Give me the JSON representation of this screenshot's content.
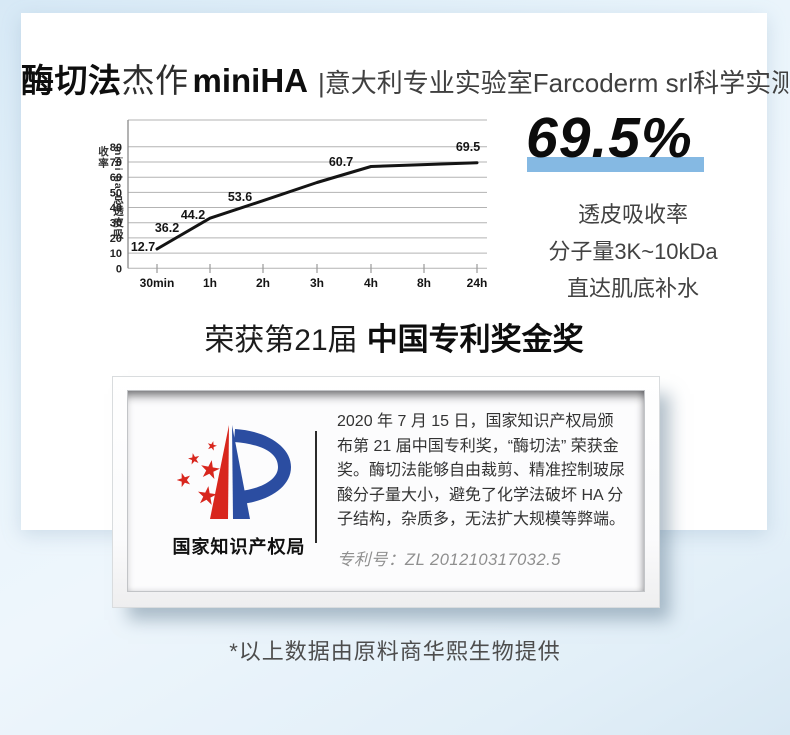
{
  "header": {
    "title_bold_1": "酶切法",
    "title_regular": "杰作",
    "title_bold_2": "miniHA",
    "subtitle": "|意大利专业实验室Farcoderm srl科学实测"
  },
  "stat": {
    "value": "69.5%",
    "desc_lines": [
      "透皮吸收率",
      "分子量3K~10kDa",
      "直达肌底补水"
    ],
    "highlight_color": "#85b9e3"
  },
  "award": {
    "prefix": "荣获第21届",
    "title": "中国专利奖金奖"
  },
  "certificate": {
    "agency": "国家知识产权局",
    "body": "2020 年 7 月 15 日，国家知识产权局颁布第 21 届中国专利奖，“酶切法” 荣获金奖。酶切法能够自由裁剪、精准控制玻尿酸分子量大小，避免了化学法破坏 HA 分子结构，杂质多，无法扩大规模等弊端。",
    "patent": "专利号：ZL 201210317032.5",
    "logo_red": "#d8261d",
    "logo_blue": "#2b4da1"
  },
  "footnote": "*以上数据由原料商华熙生物提供",
  "chart_data": {
    "type": "line",
    "title": "",
    "xlabel": "",
    "ylabel": "mini ha 总透皮吸收率",
    "categories": [
      "30min",
      "1h",
      "2h",
      "3h",
      "4h",
      "8h",
      "24h"
    ],
    "values": [
      12.7,
      36.2,
      44.2,
      53.6,
      60.7,
      null,
      69.5
    ],
    "curve_values": [
      12.7,
      33,
      44.5,
      56.5,
      67,
      68.3,
      69.5
    ],
    "data_labels": [
      "12.7",
      "36.2",
      "44.2",
      "53.6",
      "60.7",
      "69.5"
    ],
    "yticks": [
      0,
      10,
      20,
      30,
      40,
      50,
      60,
      70,
      80
    ],
    "ylim": [
      0,
      80
    ],
    "grid": true,
    "legend": null,
    "line_color": "#141414"
  }
}
